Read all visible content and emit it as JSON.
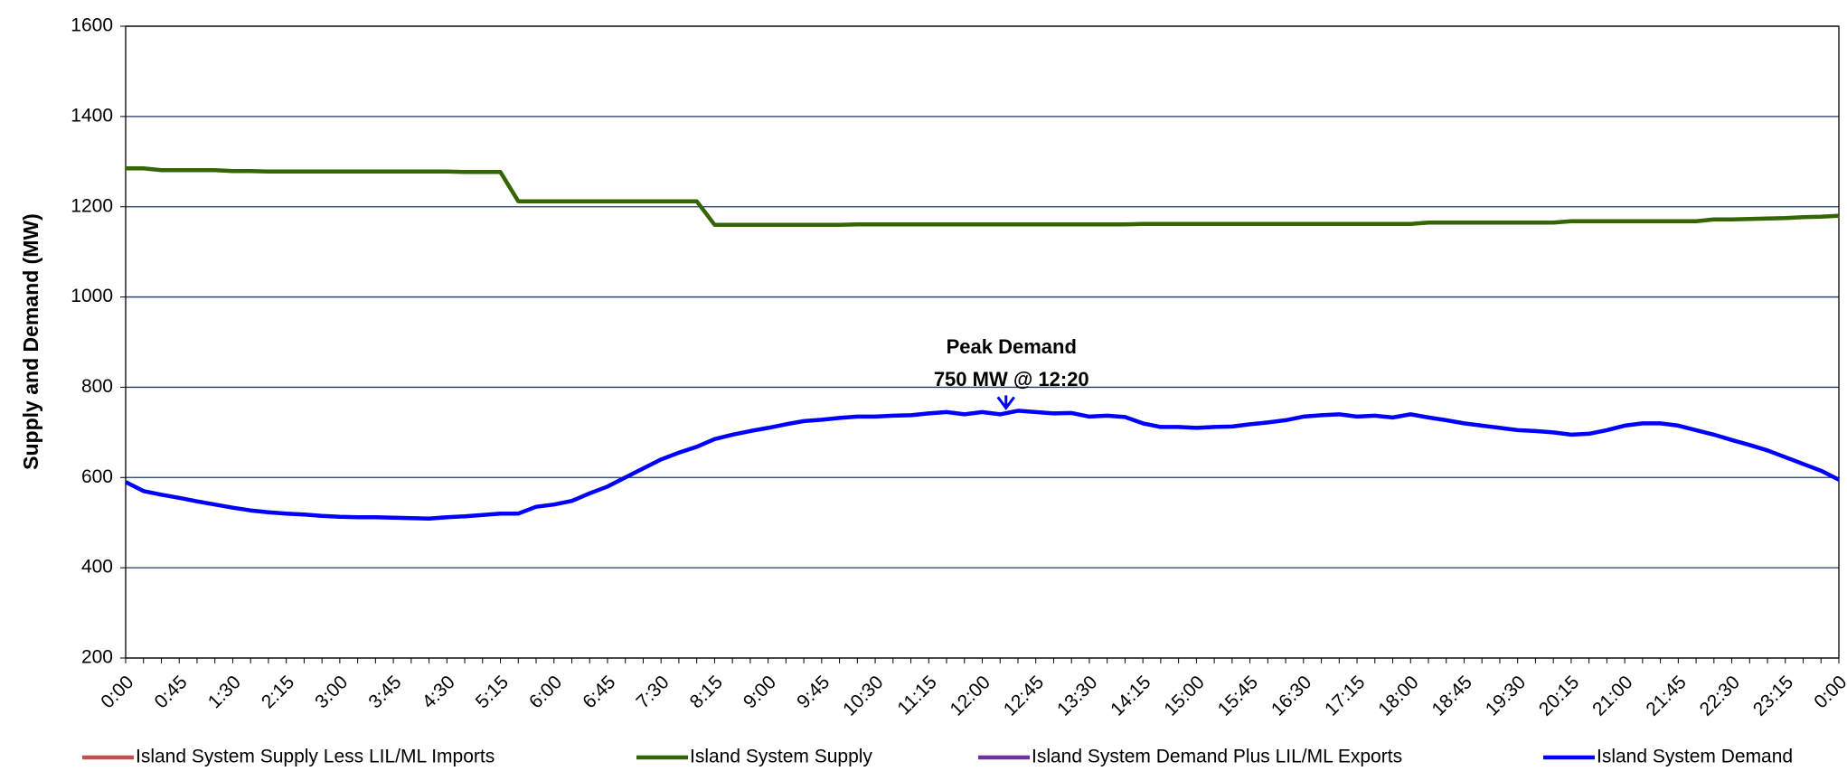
{
  "chart_data": {
    "type": "line",
    "y_label": "Supply and Demand (MW)",
    "annotation": [
      "Peak Demand",
      "750 MW @ 12:20"
    ],
    "categories": [
      "0:00",
      null,
      null,
      "0:45",
      null,
      null,
      "1:30",
      null,
      null,
      "2:15",
      null,
      null,
      "3:00",
      null,
      null,
      "3:45",
      null,
      null,
      "4:30",
      null,
      null,
      "5:15",
      null,
      null,
      "6:00",
      null,
      null,
      "6:45",
      null,
      null,
      "7:30",
      null,
      null,
      "8:15",
      null,
      null,
      "9:00",
      null,
      null,
      "9:45",
      null,
      null,
      "10:30",
      null,
      null,
      "11:15",
      null,
      null,
      "12:00",
      null,
      null,
      "12:45",
      null,
      null,
      "13:30",
      null,
      null,
      "14:15",
      null,
      null,
      "15:00",
      null,
      null,
      "15:45",
      null,
      null,
      "16:30",
      null,
      null,
      "17:15",
      null,
      null,
      "18:00",
      null,
      null,
      "18:45",
      null,
      null,
      "19:30",
      null,
      null,
      "20:15",
      null,
      null,
      "21:00",
      null,
      null,
      "21:45",
      null,
      null,
      "22:30",
      null,
      null,
      "23:15",
      null,
      null,
      "0:00"
    ],
    "ylim": [
      200,
      1600
    ],
    "yticks": [
      200,
      400,
      600,
      800,
      1000,
      1200,
      1400,
      1600
    ],
    "grid": true,
    "legend": "bottom",
    "series": [
      {
        "name": "Island System Supply Less LIL/ML Imports",
        "color": "#c0504d",
        "values": [
          null,
          null,
          null,
          null,
          null,
          null,
          null,
          null,
          null,
          null,
          null,
          null,
          null,
          null,
          null,
          null,
          null,
          null,
          null,
          null,
          null,
          null,
          null,
          null,
          null,
          null,
          null,
          null,
          null,
          null,
          null,
          null,
          null,
          null,
          null,
          null,
          null,
          null,
          null,
          null,
          null,
          null,
          null,
          null,
          null,
          null,
          null,
          null,
          null,
          null,
          null,
          null,
          null,
          null,
          null,
          null,
          null,
          null,
          null,
          null,
          null,
          null,
          null,
          null,
          null,
          null,
          null,
          null,
          null,
          null,
          null,
          null,
          null,
          null,
          null,
          null,
          null,
          null,
          null,
          null,
          null,
          null,
          null,
          null,
          null,
          null,
          null,
          null,
          null,
          null,
          null,
          null,
          null,
          null,
          null,
          null,
          null
        ]
      },
      {
        "name": "Island System Supply",
        "color": "#336600",
        "values": [
          1285,
          1285,
          1281,
          1281,
          1281,
          1281,
          1279,
          1279,
          1278,
          1278,
          1278,
          1278,
          1278,
          1278,
          1278,
          1278,
          1278,
          1278,
          1278,
          1277,
          1277,
          1277,
          1212,
          1212,
          1212,
          1212,
          1212,
          1212,
          1212,
          1212,
          1212,
          1212,
          1212,
          1160,
          1160,
          1160,
          1160,
          1160,
          1160,
          1160,
          1160,
          1161,
          1161,
          1161,
          1161,
          1161,
          1161,
          1161,
          1161,
          1161,
          1161,
          1161,
          1161,
          1161,
          1161,
          1161,
          1161,
          1162,
          1162,
          1162,
          1162,
          1162,
          1162,
          1162,
          1162,
          1162,
          1162,
          1162,
          1162,
          1162,
          1162,
          1162,
          1162,
          1165,
          1165,
          1165,
          1165,
          1165,
          1165,
          1165,
          1165,
          1168,
          1168,
          1168,
          1168,
          1168,
          1168,
          1168,
          1168,
          1172,
          1172,
          1173,
          1174,
          1175,
          1177,
          1178,
          1180
        ]
      },
      {
        "name": "Island System Demand Plus LIL/ML Exports",
        "color": "#7030a0",
        "values": [
          null,
          null,
          null,
          null,
          null,
          null,
          null,
          null,
          null,
          null,
          null,
          null,
          null,
          null,
          null,
          null,
          null,
          null,
          null,
          null,
          null,
          null,
          null,
          null,
          null,
          null,
          null,
          null,
          null,
          null,
          null,
          null,
          null,
          null,
          null,
          null,
          null,
          null,
          null,
          null,
          null,
          null,
          null,
          null,
          null,
          null,
          null,
          null,
          null,
          null,
          null,
          null,
          null,
          null,
          null,
          null,
          null,
          null,
          null,
          null,
          null,
          null,
          null,
          null,
          null,
          null,
          null,
          null,
          null,
          null,
          null,
          null,
          null,
          null,
          null,
          null,
          null,
          null,
          null,
          null,
          null,
          null,
          null,
          null,
          null,
          null,
          null,
          null,
          null,
          null,
          null,
          null,
          null,
          null,
          null,
          null,
          null
        ]
      },
      {
        "name": "Island System Demand",
        "color": "#0000ff",
        "values": [
          590,
          570,
          562,
          555,
          547,
          540,
          533,
          527,
          523,
          520,
          518,
          515,
          513,
          512,
          512,
          511,
          510,
          509,
          512,
          514,
          517,
          520,
          520,
          535,
          540,
          548,
          565,
          580,
          600,
          620,
          640,
          655,
          668,
          685,
          695,
          703,
          710,
          718,
          725,
          728,
          732,
          735,
          735,
          737,
          738,
          742,
          745,
          740,
          745,
          740,
          748,
          745,
          742,
          743,
          735,
          737,
          734,
          720,
          712,
          712,
          710,
          712,
          713,
          718,
          722,
          727,
          735,
          738,
          740,
          735,
          737,
          733,
          740,
          733,
          727,
          720,
          715,
          710,
          705,
          703,
          700,
          695,
          697,
          705,
          715,
          720,
          720,
          715,
          705,
          695,
          683,
          672,
          660,
          645,
          630,
          615,
          595
        ]
      }
    ]
  }
}
